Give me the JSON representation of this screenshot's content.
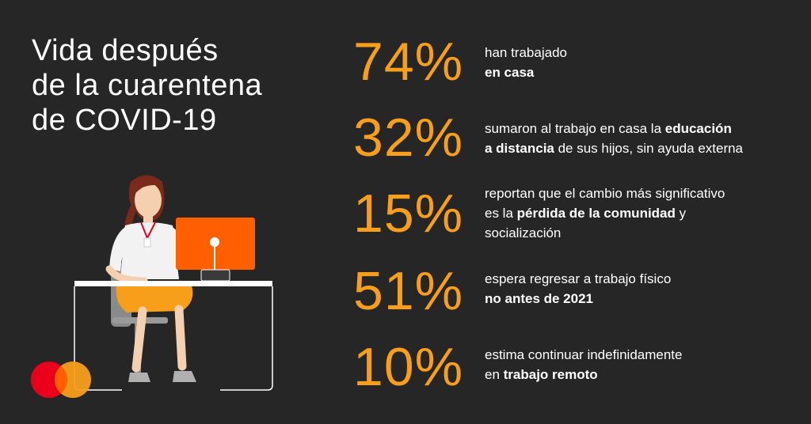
{
  "title": {
    "line1": "Vida después",
    "line2": "de la cuarentena",
    "line3": "de COVID-19"
  },
  "stats": [
    {
      "pct": "74%",
      "parts": [
        {
          "t": "han trabajado",
          "b": false
        },
        {
          "t": "\n",
          "b": false
        },
        {
          "t": "en casa",
          "b": true
        }
      ]
    },
    {
      "pct": "32%",
      "parts": [
        {
          "t": "sumaron al trabajo en casa la ",
          "b": false
        },
        {
          "t": "educación",
          "b": true
        },
        {
          "t": "\n",
          "b": false
        },
        {
          "t": "a distancia",
          "b": true
        },
        {
          "t": " de sus hijos, sin ayuda externa",
          "b": false
        }
      ]
    },
    {
      "pct": "15%",
      "parts": [
        {
          "t": "reportan que el cambio más significativo",
          "b": false
        },
        {
          "t": "\n",
          "b": false
        },
        {
          "t": "es la ",
          "b": false
        },
        {
          "t": "pérdida de la comunidad",
          "b": true
        },
        {
          "t": " y",
          "b": false
        },
        {
          "t": "\n",
          "b": false
        },
        {
          "t": "socialización",
          "b": false
        }
      ]
    },
    {
      "pct": "51%",
      "parts": [
        {
          "t": "espera regresar a trabajo físico",
          "b": false
        },
        {
          "t": "\n",
          "b": false
        },
        {
          "t": "no antes de 2021",
          "b": true
        }
      ]
    },
    {
      "pct": "10%",
      "parts": [
        {
          "t": "estima continuar indefinidamente",
          "b": false
        },
        {
          "t": "\n",
          "b": false
        },
        {
          "t": "en ",
          "b": false
        },
        {
          "t": "trabajo remoto",
          "b": true
        }
      ]
    }
  ],
  "colors": {
    "background": "#262626",
    "accent_orange": "#f79e1b",
    "logo_red": "#eb001b",
    "logo_yellow": "#f79e1b",
    "laptop_orange": "#ff5f00"
  },
  "icons": {
    "logo": "mastercard-logo",
    "illustration": "woman-at-desk-illustration"
  }
}
